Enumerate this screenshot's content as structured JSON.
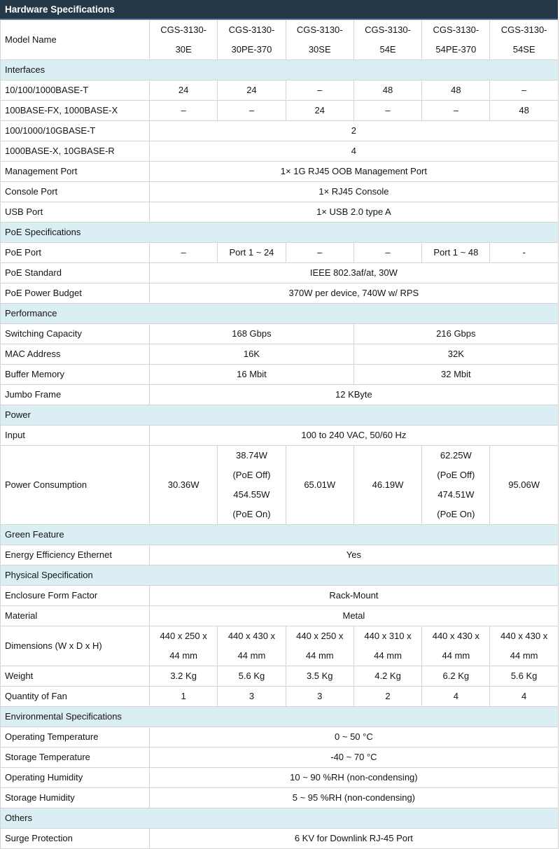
{
  "title": "Hardware Specifications",
  "colors": {
    "header_bg": "#253847",
    "header_underline": "#3a5a80",
    "section_bg": "#daeef3",
    "border": "#d4d4d4",
    "text": "#141414"
  },
  "rows": [
    {
      "t": "row",
      "label": "Model Name",
      "cells": [
        {
          "v": "CGS-3130-\n30E"
        },
        {
          "v": "CGS-3130-\n30PE-370"
        },
        {
          "v": "CGS-3130-\n30SE"
        },
        {
          "v": "CGS-3130-\n54E"
        },
        {
          "v": "CGS-3130-\n54PE-370"
        },
        {
          "v": "CGS-3130-\n54SE"
        }
      ]
    },
    {
      "t": "sec",
      "label": "Interfaces"
    },
    {
      "t": "row",
      "label": "10/100/1000BASE-T",
      "cells": [
        {
          "v": "24"
        },
        {
          "v": "24"
        },
        {
          "v": "–"
        },
        {
          "v": "48"
        },
        {
          "v": "48"
        },
        {
          "v": "–"
        }
      ]
    },
    {
      "t": "row",
      "label": "100BASE-FX, 1000BASE-X",
      "cells": [
        {
          "v": "–"
        },
        {
          "v": "–"
        },
        {
          "v": "24"
        },
        {
          "v": "–"
        },
        {
          "v": "–"
        },
        {
          "v": "48"
        }
      ]
    },
    {
      "t": "row",
      "label": "100/1000/10GBASE-T",
      "cells": [
        {
          "v": "2",
          "span": 6
        }
      ]
    },
    {
      "t": "row",
      "label": "1000BASE-X, 10GBASE-R",
      "cells": [
        {
          "v": "4",
          "span": 6
        }
      ]
    },
    {
      "t": "row",
      "label": "Management Port",
      "cells": [
        {
          "v": "1× 1G RJ45 OOB Management Port",
          "span": 6
        }
      ]
    },
    {
      "t": "row",
      "label": "Console Port",
      "cells": [
        {
          "v": "1× RJ45 Console",
          "span": 6
        }
      ]
    },
    {
      "t": "row",
      "label": "USB Port",
      "cells": [
        {
          "v": "1× USB 2.0 type A",
          "span": 6
        }
      ]
    },
    {
      "t": "sec",
      "label": "PoE Specifications"
    },
    {
      "t": "row",
      "label": "PoE Port",
      "cells": [
        {
          "v": "–"
        },
        {
          "v": "Port 1 ~ 24"
        },
        {
          "v": "–"
        },
        {
          "v": "–"
        },
        {
          "v": "Port 1 ~ 48"
        },
        {
          "v": "-"
        }
      ]
    },
    {
      "t": "row",
      "label": "PoE Standard",
      "cells": [
        {
          "v": "IEEE 802.3af/at, 30W",
          "span": 6
        }
      ]
    },
    {
      "t": "row",
      "label": "PoE Power Budget",
      "cells": [
        {
          "v": "370W per device, 740W w/ RPS",
          "span": 6
        }
      ]
    },
    {
      "t": "sec",
      "label": "Performance"
    },
    {
      "t": "row",
      "label": "Switching Capacity",
      "cells": [
        {
          "v": "168 Gbps",
          "span": 3
        },
        {
          "v": "216 Gbps",
          "span": 3
        }
      ]
    },
    {
      "t": "row",
      "label": "MAC Address",
      "cells": [
        {
          "v": "16K",
          "span": 3
        },
        {
          "v": "32K",
          "span": 3
        }
      ]
    },
    {
      "t": "row",
      "label": "Buffer Memory",
      "cells": [
        {
          "v": "16 Mbit",
          "span": 3
        },
        {
          "v": "32 Mbit",
          "span": 3
        }
      ]
    },
    {
      "t": "row",
      "label": "Jumbo Frame",
      "cells": [
        {
          "v": "12 KByte",
          "span": 6
        }
      ]
    },
    {
      "t": "sec",
      "label": "Power"
    },
    {
      "t": "row",
      "label": "Input",
      "cells": [
        {
          "v": "100 to 240 VAC, 50/60 Hz",
          "span": 6
        }
      ]
    },
    {
      "t": "row",
      "label": "Power Consumption",
      "cells": [
        {
          "v": "30.36W"
        },
        {
          "v": "38.74W\n(PoE Off)\n454.55W\n(PoE On)"
        },
        {
          "v": "65.01W"
        },
        {
          "v": "46.19W"
        },
        {
          "v": "62.25W\n(PoE Off)\n474.51W\n(PoE On)"
        },
        {
          "v": "95.06W"
        }
      ]
    },
    {
      "t": "sec",
      "label": "Green Feature"
    },
    {
      "t": "row",
      "label": "Energy Efficiency Ethernet",
      "cells": [
        {
          "v": "Yes",
          "span": 6
        }
      ]
    },
    {
      "t": "sec",
      "label": "Physical Specification"
    },
    {
      "t": "row",
      "label": "Enclosure Form Factor",
      "cells": [
        {
          "v": "Rack-Mount",
          "span": 6
        }
      ]
    },
    {
      "t": "row",
      "label": "Material",
      "cells": [
        {
          "v": "Metal",
          "span": 6
        }
      ]
    },
    {
      "t": "row",
      "label": "Dimensions (W x D x H)",
      "cells": [
        {
          "v": "440 x 250 x\n44 mm"
        },
        {
          "v": "440 x 430 x\n44 mm"
        },
        {
          "v": "440 x 250 x\n44 mm"
        },
        {
          "v": "440 x 310 x\n44 mm"
        },
        {
          "v": "440 x 430 x\n44 mm"
        },
        {
          "v": "440 x 430 x\n44 mm"
        }
      ]
    },
    {
      "t": "row",
      "label": "Weight",
      "cells": [
        {
          "v": "3.2 Kg"
        },
        {
          "v": "5.6 Kg"
        },
        {
          "v": "3.5 Kg"
        },
        {
          "v": "4.2 Kg"
        },
        {
          "v": "6.2 Kg"
        },
        {
          "v": "5.6 Kg"
        }
      ]
    },
    {
      "t": "row",
      "label": "Quantity of Fan",
      "cells": [
        {
          "v": "1"
        },
        {
          "v": "3"
        },
        {
          "v": "3"
        },
        {
          "v": "2"
        },
        {
          "v": "4"
        },
        {
          "v": "4"
        }
      ]
    },
    {
      "t": "sec",
      "label": "Environmental Specifications"
    },
    {
      "t": "row",
      "label": "Operating Temperature",
      "cells": [
        {
          "v": "0 ~ 50 °C",
          "span": 6
        }
      ]
    },
    {
      "t": "row",
      "label": "Storage Temperature",
      "cells": [
        {
          "v": "-40 ~ 70 °C",
          "span": 6
        }
      ]
    },
    {
      "t": "row",
      "label": "Operating Humidity",
      "cells": [
        {
          "v": "10 ~ 90 %RH (non-condensing)",
          "span": 6
        }
      ]
    },
    {
      "t": "row",
      "label": "Storage Humidity",
      "cells": [
        {
          "v": "5 ~ 95 %RH (non-condensing)",
          "span": 6
        }
      ]
    },
    {
      "t": "sec",
      "label": "Others"
    },
    {
      "t": "row",
      "label": "Surge Protection",
      "cells": [
        {
          "v": "6 KV for Downlink RJ-45 Port",
          "span": 6
        }
      ]
    }
  ]
}
